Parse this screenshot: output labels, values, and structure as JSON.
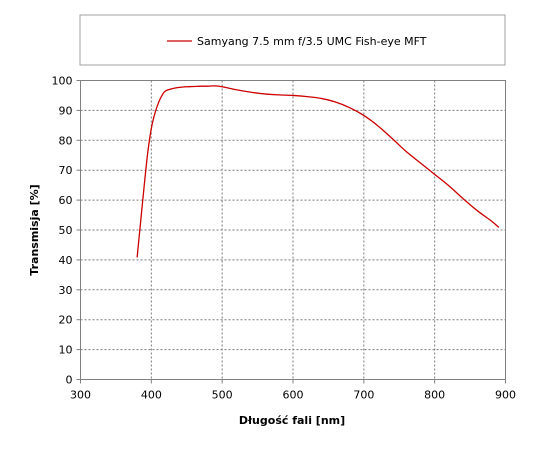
{
  "chart_data": {
    "type": "line",
    "title": "",
    "xlabel": "Długość fali [nm]",
    "ylabel": "Transmisja [%]",
    "xlim": [
      300,
      900
    ],
    "ylim": [
      0,
      100
    ],
    "xticks": [
      300,
      400,
      500,
      600,
      700,
      800,
      900
    ],
    "yticks": [
      0,
      10,
      20,
      30,
      40,
      50,
      60,
      70,
      80,
      90,
      100
    ],
    "grid": true,
    "legend_position": "top",
    "series": [
      {
        "name": "Samyang 7.5 mm f/3.5 UMC Fish-eye MFT",
        "color": "#cc0000",
        "x": [
          380,
          385,
          390,
          395,
          400,
          405,
          410,
          415,
          420,
          430,
          440,
          450,
          460,
          470,
          480,
          490,
          500,
          520,
          540,
          560,
          580,
          600,
          620,
          640,
          660,
          680,
          700,
          720,
          740,
          760,
          780,
          800,
          820,
          840,
          860,
          880,
          890
        ],
        "y": [
          41,
          53,
          65,
          76,
          84,
          89,
          92.5,
          95,
          96.5,
          97.3,
          97.7,
          97.9,
          98.0,
          98.1,
          98.1,
          98.2,
          97.9,
          96.9,
          96.1,
          95.5,
          95.2,
          95.0,
          94.6,
          94.0,
          92.8,
          90.9,
          88.3,
          84.8,
          80.6,
          76.2,
          72.4,
          68.6,
          64.8,
          60.5,
          56.5,
          53.0,
          51.0
        ]
      }
    ]
  }
}
